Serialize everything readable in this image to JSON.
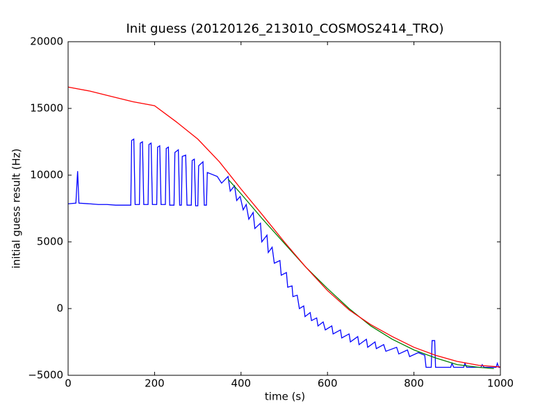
{
  "chart_data": {
    "type": "line",
    "title": "Init guess (20120126_213010_COSMOS2414_TRO)",
    "x_label": "time (s)",
    "y_label": "initial guess result (Hz)",
    "xlim": [
      0,
      1000
    ],
    "ylim": [
      -5000,
      20000
    ],
    "xticks": [
      0,
      200,
      400,
      600,
      800,
      1000
    ],
    "yticks": [
      {
        "value": -5000,
        "label": "−5000"
      },
      0,
      5000,
      10000,
      15000,
      20000
    ],
    "series": [
      {
        "color": "#0000ff",
        "x": [
          0,
          18,
          22,
          25,
          50,
          70,
          90,
          110,
          145,
          147,
          152,
          155,
          165,
          167,
          172,
          175,
          185,
          187,
          192,
          195,
          205,
          207,
          212,
          215,
          225,
          227,
          232,
          235,
          245,
          247,
          255,
          258,
          262,
          264,
          272,
          275,
          285,
          287,
          292,
          295,
          300,
          302,
          312,
          315,
          320,
          322,
          345,
          355,
          370,
          375,
          385,
          390,
          398,
          405,
          412,
          418,
          428,
          432,
          445,
          448,
          460,
          463,
          472,
          477,
          490,
          493,
          505,
          508,
          518,
          520,
          530,
          535,
          545,
          548,
          560,
          563,
          575,
          578,
          590,
          595,
          610,
          613,
          630,
          633,
          650,
          653,
          670,
          673,
          690,
          693,
          710,
          713,
          730,
          735,
          760,
          765,
          785,
          790,
          810,
          825,
          828,
          840,
          842,
          848,
          850,
          885,
          888,
          892,
          915,
          918,
          922,
          955,
          958,
          962,
          990,
          993,
          996,
          1000
        ],
        "values": [
          7850,
          7900,
          10300,
          7900,
          7850,
          7800,
          7800,
          7750,
          7750,
          12600,
          12700,
          7800,
          7800,
          12400,
          12500,
          7800,
          7800,
          12300,
          12400,
          7800,
          7800,
          12100,
          12200,
          7800,
          7800,
          12000,
          12100,
          7750,
          7750,
          11700,
          11900,
          7750,
          7750,
          11400,
          11500,
          7750,
          7750,
          11100,
          11200,
          7700,
          7700,
          10700,
          11000,
          7750,
          7750,
          10200,
          9900,
          9400,
          9900,
          8800,
          9200,
          8100,
          8400,
          7400,
          7800,
          6700,
          7200,
          6000,
          6400,
          5000,
          5500,
          4200,
          4600,
          3400,
          3600,
          2500,
          2700,
          1600,
          1700,
          900,
          1000,
          0,
          200,
          -600,
          -300,
          -900,
          -700,
          -1300,
          -1000,
          -1600,
          -1300,
          -1900,
          -1600,
          -2200,
          -1900,
          -2500,
          -2100,
          -2700,
          -2300,
          -2900,
          -2500,
          -3000,
          -2700,
          -3200,
          -2900,
          -3400,
          -3100,
          -3600,
          -3300,
          -3500,
          -4400,
          -4400,
          -2400,
          -2400,
          -4400,
          -4400,
          -4100,
          -4400,
          -4400,
          -4100,
          -4400,
          -4400,
          -4200,
          -4400,
          -4400,
          -4100,
          -4400,
          -4400
        ]
      },
      {
        "color": "#008000",
        "x": [
          370,
          400,
          450,
          500,
          550,
          600,
          650,
          700,
          750,
          800,
          850,
          900,
          950,
          985
        ],
        "values": [
          9700,
          8600,
          6700,
          4900,
          3100,
          1500,
          0,
          -1300,
          -2300,
          -3100,
          -3700,
          -4200,
          -4400,
          -4500
        ]
      },
      {
        "color": "#ff0000",
        "x": [
          0,
          50,
          100,
          150,
          200,
          250,
          300,
          350,
          400,
          450,
          500,
          550,
          600,
          650,
          700,
          750,
          800,
          850,
          900,
          950,
          1000
        ],
        "values": [
          16600,
          16300,
          15900,
          15500,
          15200,
          14000,
          12700,
          11000,
          8960,
          7000,
          5000,
          3100,
          1350,
          -100,
          -1200,
          -2100,
          -2900,
          -3500,
          -3960,
          -4250,
          -4375
        ]
      }
    ]
  }
}
